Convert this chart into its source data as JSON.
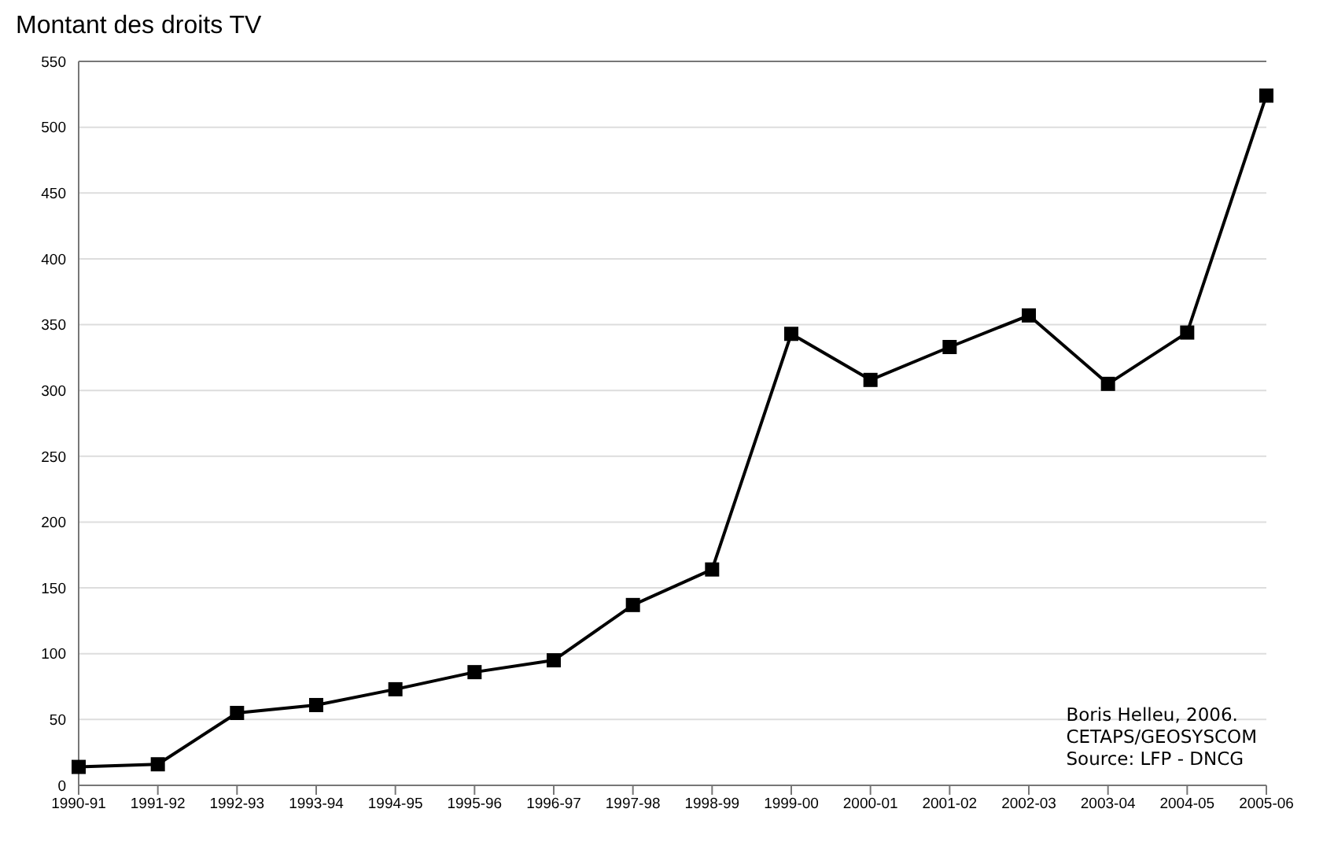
{
  "chart_data": {
    "type": "line",
    "title": "Montant des droits TV",
    "categories": [
      "1990-91",
      "1991-92",
      "1992-93",
      "1993-94",
      "1994-95",
      "1995-96",
      "1996-97",
      "1997-98",
      "1998-99",
      "1999-00",
      "2000-01",
      "2001-02",
      "2002-03",
      "2003-04",
      "2004-05",
      "2005-06"
    ],
    "series": [
      {
        "color": "#000000",
        "values": [
          14,
          16,
          55,
          61,
          73,
          86,
          95,
          137,
          164,
          343,
          308,
          333,
          357,
          305,
          344,
          524
        ]
      }
    ],
    "ylim": [
      0,
      550
    ],
    "yticks": [
      0,
      50,
      100,
      150,
      200,
      250,
      300,
      350,
      400,
      450,
      500,
      550
    ],
    "grid": "y",
    "legend": false,
    "marker": "square",
    "line_style": "solid",
    "annotations": [
      "Boris Helleu, 2006.",
      "CETAPS/GEOSYSCOM",
      "Source: LFP - DNCG"
    ]
  }
}
